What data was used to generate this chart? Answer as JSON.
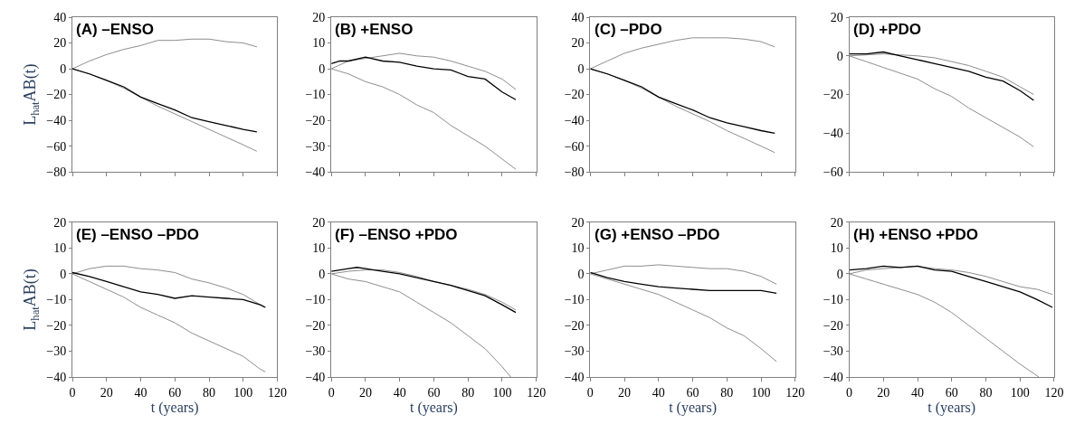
{
  "chart_data": [
    {
      "type": "line",
      "title": "(A) –ENSO",
      "ylabel": "L$_{hat}$AB(t)",
      "xlim": [
        0,
        120
      ],
      "xticks": [
        0,
        20,
        40,
        60,
        80,
        100,
        120
      ],
      "ylim": [
        -80,
        40
      ],
      "yticks": [
        -80,
        -60,
        -40,
        -20,
        0,
        20,
        40
      ],
      "tick_labels": "y",
      "series": [
        {
          "color": "#808080",
          "x": [
            0,
            10,
            20,
            30,
            40,
            50,
            60,
            70,
            80,
            90,
            100,
            108
          ],
          "values": [
            0,
            6,
            11,
            15,
            18,
            22,
            22,
            23,
            23,
            21,
            20,
            17
          ]
        },
        {
          "color": "#808080",
          "x": [
            0,
            10,
            20,
            30,
            40,
            50,
            60,
            70,
            80,
            90,
            100,
            108
          ],
          "values": [
            0,
            -4,
            -9,
            -15,
            -22,
            -29,
            -35,
            -41,
            -47,
            -53,
            -59,
            -64
          ]
        },
        {
          "color": "#000000",
          "x": [
            0,
            10,
            20,
            30,
            40,
            50,
            60,
            70,
            80,
            90,
            100,
            108
          ],
          "values": [
            0,
            -4,
            -9,
            -14,
            -22,
            -27,
            -32,
            -38,
            -41,
            -44,
            -47,
            -49
          ]
        }
      ]
    },
    {
      "type": "line",
      "title": "(B) +ENSO",
      "xlim": [
        0,
        120
      ],
      "xticks": [
        0,
        20,
        40,
        60,
        80,
        100,
        120
      ],
      "ylim": [
        -40,
        20
      ],
      "yticks": [
        -40,
        -30,
        -20,
        -10,
        0,
        10,
        20
      ],
      "tick_labels": "y",
      "series": [
        {
          "color": "#808080",
          "x": [
            0,
            10,
            20,
            30,
            40,
            50,
            60,
            70,
            80,
            90,
            100,
            108
          ],
          "values": [
            0,
            3,
            4,
            5,
            6,
            5,
            4.5,
            3,
            1,
            -1,
            -4,
            -8
          ]
        },
        {
          "color": "#808080",
          "x": [
            0,
            10,
            20,
            30,
            40,
            50,
            60,
            70,
            80,
            90,
            100,
            108
          ],
          "values": [
            0,
            -2,
            -5,
            -7,
            -10,
            -14,
            -17,
            -22,
            -26,
            -30,
            -35,
            -39
          ]
        },
        {
          "color": "#000000",
          "x": [
            0,
            5,
            10,
            20,
            30,
            40,
            50,
            60,
            70,
            80,
            90,
            100,
            108
          ],
          "values": [
            2,
            3,
            3,
            4.5,
            3,
            2.5,
            1,
            0,
            -0.5,
            -3,
            -4,
            -9,
            -12
          ]
        }
      ]
    },
    {
      "type": "line",
      "title": "(C) –PDO",
      "xlim": [
        0,
        120
      ],
      "xticks": [
        0,
        20,
        40,
        60,
        80,
        100,
        120
      ],
      "ylim": [
        -80,
        40
      ],
      "yticks": [
        -80,
        -60,
        -40,
        -20,
        0,
        20,
        40
      ],
      "tick_labels": "y",
      "series": [
        {
          "color": "#808080",
          "x": [
            0,
            10,
            20,
            30,
            40,
            50,
            60,
            70,
            80,
            90,
            100,
            108
          ],
          "values": [
            0,
            6,
            12,
            16,
            19,
            22,
            24,
            24,
            24,
            23,
            21,
            17
          ]
        },
        {
          "color": "#808080",
          "x": [
            0,
            10,
            20,
            30,
            40,
            50,
            60,
            70,
            80,
            90,
            100,
            108
          ],
          "values": [
            0,
            -4,
            -9,
            -15,
            -22,
            -29,
            -35,
            -41,
            -48,
            -54,
            -60,
            -65
          ]
        },
        {
          "color": "#000000",
          "x": [
            0,
            10,
            20,
            30,
            40,
            50,
            60,
            70,
            80,
            90,
            100,
            108
          ],
          "values": [
            0,
            -4,
            -9,
            -14,
            -22,
            -27,
            -32,
            -38,
            -42,
            -45,
            -48,
            -50
          ]
        }
      ]
    },
    {
      "type": "line",
      "title": "(D) +PDO",
      "xlim": [
        0,
        120
      ],
      "xticks": [
        0,
        20,
        40,
        60,
        80,
        100,
        120
      ],
      "ylim": [
        -60,
        20
      ],
      "yticks": [
        -60,
        -40,
        -20,
        0,
        20
      ],
      "tick_labels": "y",
      "series": [
        {
          "color": "#808080",
          "x": [
            0,
            20,
            30,
            40,
            50,
            60,
            70,
            80,
            90,
            100,
            108
          ],
          "values": [
            0,
            1,
            0.5,
            0,
            -1,
            -3,
            -5,
            -8,
            -11,
            -16,
            -20
          ]
        },
        {
          "color": "#808080",
          "x": [
            0,
            10,
            20,
            30,
            40,
            50,
            60,
            70,
            80,
            90,
            100,
            108
          ],
          "values": [
            0,
            -3,
            -6,
            -9,
            -12,
            -17,
            -21,
            -27,
            -32,
            -37,
            -42,
            -47
          ]
        },
        {
          "color": "#000000",
          "x": [
            0,
            10,
            20,
            30,
            40,
            50,
            60,
            70,
            80,
            90,
            100,
            108
          ],
          "values": [
            1,
            1,
            2,
            0,
            -2,
            -4,
            -6,
            -8,
            -11,
            -13,
            -18,
            -23
          ]
        }
      ]
    },
    {
      "type": "line",
      "title": "(E) –ENSO –PDO",
      "xlabel": "t (years)",
      "ylabel": "L$_{hat}$AB(t)",
      "xlim": [
        0,
        120
      ],
      "xticks": [
        0,
        20,
        40,
        60,
        80,
        100,
        120
      ],
      "ylim": [
        -40,
        20
      ],
      "yticks": [
        -40,
        -30,
        -20,
        -10,
        0,
        10,
        20
      ],
      "series": [
        {
          "color": "#808080",
          "x": [
            0,
            10,
            20,
            30,
            40,
            50,
            60,
            70,
            80,
            90,
            100,
            110,
            113
          ],
          "values": [
            0,
            2,
            3,
            3,
            2,
            1.5,
            0.5,
            -2,
            -3.5,
            -5.5,
            -8,
            -12,
            -13
          ]
        },
        {
          "color": "#808080",
          "x": [
            0,
            10,
            20,
            30,
            40,
            50,
            60,
            70,
            80,
            90,
            100,
            110,
            113
          ],
          "values": [
            0,
            -3,
            -6,
            -9,
            -13,
            -16,
            -19,
            -23,
            -26,
            -29,
            -32,
            -37,
            -38
          ]
        },
        {
          "color": "#000000",
          "x": [
            0,
            10,
            20,
            30,
            40,
            50,
            60,
            70,
            80,
            90,
            100,
            110,
            113
          ],
          "values": [
            0.5,
            -1,
            -3,
            -5,
            -7,
            -8,
            -9.5,
            -8.5,
            -9,
            -9.5,
            -10,
            -12,
            -13
          ]
        }
      ]
    },
    {
      "type": "line",
      "title": "(F) –ENSO +PDO",
      "xlabel": "t (years)",
      "xlim": [
        0,
        120
      ],
      "xticks": [
        0,
        20,
        40,
        60,
        80,
        100,
        120
      ],
      "ylim": [
        -40,
        20
      ],
      "yticks": [
        -40,
        -30,
        -20,
        -10,
        0,
        10,
        20
      ],
      "series": [
        {
          "color": "#808080",
          "x": [
            0,
            10,
            20,
            30,
            40,
            50,
            60,
            70,
            80,
            90,
            100,
            108
          ],
          "values": [
            0,
            1,
            1.5,
            1.5,
            0.5,
            -1,
            -3,
            -4.5,
            -6,
            -8,
            -11,
            -14
          ]
        },
        {
          "color": "#808080",
          "x": [
            0,
            10,
            20,
            30,
            40,
            50,
            60,
            70,
            80,
            90,
            100,
            105
          ],
          "values": [
            0,
            -2,
            -3,
            -5,
            -7,
            -11,
            -15,
            -19,
            -24,
            -29,
            -36,
            -40
          ]
        },
        {
          "color": "#000000",
          "x": [
            0,
            10,
            15,
            20,
            30,
            40,
            50,
            60,
            70,
            80,
            90,
            100,
            108
          ],
          "values": [
            1,
            2,
            2.5,
            2,
            1,
            0,
            -1.5,
            -3,
            -4.5,
            -6.5,
            -8.5,
            -12,
            -15
          ]
        }
      ]
    },
    {
      "type": "line",
      "title": "(G) +ENSO –PDO",
      "xlabel": "t (years)",
      "xlim": [
        0,
        120
      ],
      "xticks": [
        0,
        20,
        40,
        60,
        80,
        100,
        120
      ],
      "ylim": [
        -40,
        20
      ],
      "yticks": [
        -40,
        -30,
        -20,
        -10,
        0,
        10,
        20
      ],
      "series": [
        {
          "color": "#808080",
          "x": [
            0,
            10,
            20,
            30,
            40,
            50,
            60,
            70,
            80,
            90,
            100,
            109
          ],
          "values": [
            0,
            1.5,
            3,
            3,
            3.5,
            3,
            2.5,
            2,
            2,
            1,
            -1,
            -4
          ]
        },
        {
          "color": "#808080",
          "x": [
            0,
            10,
            20,
            30,
            40,
            50,
            60,
            70,
            80,
            90,
            100,
            109
          ],
          "values": [
            0,
            -2,
            -4,
            -6,
            -8,
            -11,
            -14,
            -17,
            -21,
            -24,
            -29,
            -34
          ]
        },
        {
          "color": "#000000",
          "x": [
            0,
            10,
            20,
            30,
            40,
            50,
            60,
            70,
            80,
            90,
            100,
            109
          ],
          "values": [
            0.5,
            -1.5,
            -3,
            -4,
            -5,
            -5.5,
            -6,
            -6.5,
            -6.5,
            -6.5,
            -6.5,
            -7.5
          ]
        }
      ]
    },
    {
      "type": "line",
      "title": "(H) +ENSO +PDO",
      "xlabel": "t (years)",
      "xlim": [
        0,
        120
      ],
      "xticks": [
        0,
        20,
        40,
        60,
        80,
        100,
        120
      ],
      "ylim": [
        -40,
        20
      ],
      "yticks": [
        -40,
        -30,
        -20,
        -10,
        0,
        10,
        20
      ],
      "series": [
        {
          "color": "#808080",
          "x": [
            0,
            10,
            20,
            30,
            40,
            50,
            60,
            70,
            80,
            90,
            100,
            110,
            119
          ],
          "values": [
            0,
            1.5,
            2,
            2.5,
            3,
            2,
            1.5,
            0.5,
            -1,
            -3,
            -5,
            -6,
            -8
          ]
        },
        {
          "color": "#808080",
          "x": [
            0,
            10,
            20,
            30,
            40,
            50,
            60,
            70,
            80,
            90,
            100,
            111
          ],
          "values": [
            0,
            -2,
            -4,
            -6,
            -8,
            -11,
            -15,
            -20,
            -25,
            -30,
            -35,
            -40
          ]
        },
        {
          "color": "#000000",
          "x": [
            0,
            10,
            20,
            30,
            40,
            50,
            60,
            70,
            80,
            90,
            100,
            110,
            119
          ],
          "values": [
            1.5,
            2,
            3,
            2.5,
            3,
            1.5,
            1,
            -1,
            -3,
            -5,
            -7,
            -10,
            -13
          ]
        }
      ]
    }
  ]
}
